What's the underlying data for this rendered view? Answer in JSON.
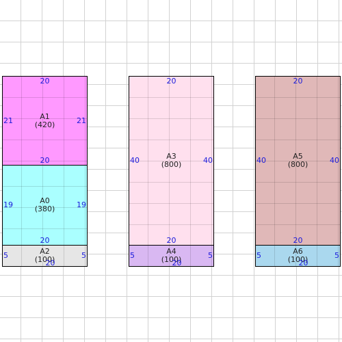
{
  "blocks": {
    "A1": {
      "name": "A1",
      "size": "(420)",
      "top": "20",
      "left": "21",
      "right": "21",
      "bottom": "20",
      "color": "#ff99ff"
    },
    "A0": {
      "name": "A0",
      "size": "(380)",
      "left": "19",
      "right": "19",
      "bottom": "20",
      "color": "#aaffff"
    },
    "A2": {
      "name": "A2",
      "size": "(100)",
      "left": "5",
      "right": "5",
      "bottom": "20",
      "color": "#e6e6e6"
    },
    "A3": {
      "name": "A3",
      "size": "(800)",
      "top": "20",
      "left": "40",
      "right": "40",
      "bottom": "20",
      "color": "#ffe0ee"
    },
    "A4": {
      "name": "A4",
      "size": "(100)",
      "left": "5",
      "right": "5",
      "bottom": "20",
      "color": "#d9b8f2"
    },
    "A5": {
      "name": "A5",
      "size": "(800)",
      "top": "20",
      "left": "40",
      "right": "40",
      "bottom": "20",
      "color": "#e0b8b8"
    },
    "A6": {
      "name": "A6",
      "size": "(100)",
      "left": "5",
      "right": "5",
      "bottom": "20",
      "color": "#aad8ee"
    }
  }
}
